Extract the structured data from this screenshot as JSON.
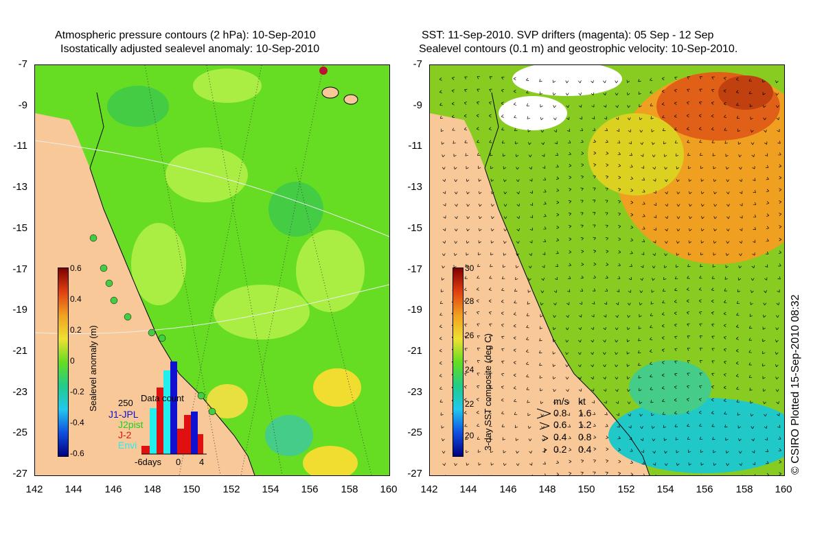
{
  "left_panel": {
    "title_line1": "Atmospheric pressure contours (2 hPa): 10-Sep-2010",
    "title_line2": "Isostatically adjusted sealevel anomaly: 10-Sep-2010",
    "colorbar_label": "Sealevel anomaly (m)",
    "colorbar_ticks": [
      "0.6",
      "0.4",
      "0.2",
      "0",
      "-0.2",
      "-0.4",
      "-0.6"
    ],
    "inset": {
      "count_label": "250",
      "title": "Data count",
      "series": [
        {
          "name": "J1-JPL",
          "color": "#1010d0"
        },
        {
          "name": "J2pist",
          "color": "#22cc22"
        },
        {
          "name": "J-2",
          "color": "#e01010"
        },
        {
          "name": "Envi",
          "color": "#22eeee"
        }
      ],
      "x_ticks": [
        "-6days",
        "0",
        "4"
      ]
    }
  },
  "right_panel": {
    "title_line1": "SST: 11-Sep-2010. SVP drifters (magenta): 05 Sep - 12 Sep",
    "title_line2": "Sealevel contours (0.1 m) and geostrophic velocity: 10-Sep-2010.",
    "colorbar_label": "3-day SST composite (deg C)",
    "colorbar_ticks": [
      "30",
      "28",
      "26",
      "24",
      "22",
      "20"
    ],
    "velocity_legend": {
      "header_ms": "m/s",
      "header_kt": "kt",
      "rows": [
        {
          "ms": "0.8",
          "kt": "1.6"
        },
        {
          "ms": "0.6",
          "kt": "1.2"
        },
        {
          "ms": "0.4",
          "kt": "0.8"
        },
        {
          "ms": "0.2",
          "kt": "0.4"
        }
      ]
    }
  },
  "axes": {
    "y_ticks": [
      "-7",
      "-9",
      "-11",
      "-13",
      "-15",
      "-17",
      "-19",
      "-21",
      "-23",
      "-25",
      "-27"
    ],
    "x_ticks": [
      "142",
      "144",
      "146",
      "148",
      "150",
      "152",
      "154",
      "156",
      "158",
      "160"
    ]
  },
  "credit": "© CSIRO Plotted 15-Sep-2010 08:32",
  "colors": {
    "land": "#f8c898",
    "sea_mid": "#66dd22",
    "sst_warm": "#f09020",
    "sst_cool": "#20c8c8"
  }
}
